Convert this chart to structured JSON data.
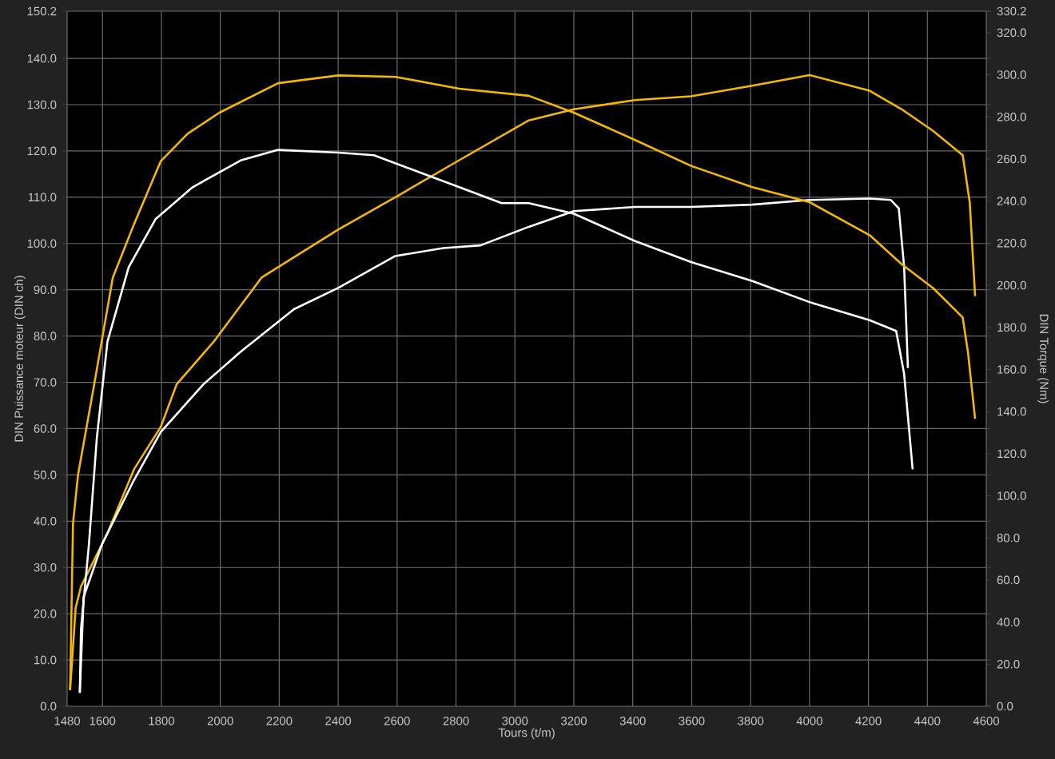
{
  "chart_data": {
    "type": "line",
    "xlabel": "Tours (t/m)",
    "ylabel": "DIN Puissance moteur (DIN ch)",
    "y2label": "DIN Torque (Nm)",
    "xlim": [
      1480,
      4600
    ],
    "xticks": [
      1480,
      1600,
      1800,
      2000,
      2200,
      2400,
      2600,
      2800,
      3000,
      3200,
      3400,
      3600,
      3800,
      4000,
      4200,
      4400,
      4600
    ],
    "ylim": [
      0,
      150.2
    ],
    "yticks": [
      {
        "value": 0,
        "label": "0.0"
      },
      {
        "value": 10,
        "label": "10.0"
      },
      {
        "value": 20,
        "label": "20.0"
      },
      {
        "value": 30,
        "label": "30.0"
      },
      {
        "value": 40,
        "label": "40.0"
      },
      {
        "value": 50,
        "label": "50.0"
      },
      {
        "value": 60,
        "label": "60.0"
      },
      {
        "value": 70,
        "label": "70.0"
      },
      {
        "value": 80,
        "label": "80.0"
      },
      {
        "value": 90,
        "label": "90.0"
      },
      {
        "value": 100,
        "label": "100.0"
      },
      {
        "value": 110,
        "label": "110.0"
      },
      {
        "value": 120,
        "label": "120.0"
      },
      {
        "value": 130,
        "label": "130.0"
      },
      {
        "value": 140,
        "label": "140.0"
      },
      150.2
    ],
    "y2lim": [
      0,
      330.2
    ],
    "y2ticks": [
      {
        "value": 0,
        "label": "0.0"
      },
      {
        "value": 20,
        "label": "20.0"
      },
      {
        "value": 40,
        "label": "40.0"
      },
      {
        "value": 60,
        "label": "60.0"
      },
      {
        "value": 80,
        "label": "80.0"
      },
      {
        "value": 100,
        "label": "100.0"
      },
      {
        "value": 120,
        "label": "120.0"
      },
      {
        "value": 140,
        "label": "140.0"
      },
      {
        "value": 160,
        "label": "160.0"
      },
      {
        "value": 180,
        "label": "180.0"
      },
      {
        "value": 200,
        "label": "200.0"
      },
      {
        "value": 220,
        "label": "220.0"
      },
      {
        "value": 240,
        "label": "240.0"
      },
      {
        "value": 260,
        "label": "260.0"
      },
      {
        "value": 280,
        "label": "280.0"
      },
      {
        "value": 300,
        "label": "300.0"
      },
      {
        "value": 320,
        "label": "320.0"
      },
      330.2
    ],
    "grid": true,
    "series": [
      {
        "color": "#f5b800",
        "x": [
          1490,
          1509,
          1527,
          1617,
          1707,
          1798,
          1852,
          1979,
          2141,
          2400,
          2594,
          2811,
          3047,
          3200,
          3408,
          3598,
          3806,
          4000,
          4204,
          4313,
          4420,
          4520,
          4544,
          4562
        ],
        "values": [
          3.5,
          21.3,
          25.9,
          37.4,
          51.2,
          60.4,
          69.6,
          78.9,
          92.7,
          103,
          110,
          118,
          126.6,
          129,
          131,
          131.8,
          134.1,
          136.4,
          133,
          129,
          124.3,
          119.1,
          108.8,
          88.6
        ]
      },
      {
        "color": "#ffffff",
        "x": [
          1523,
          1536,
          1599,
          1707,
          1798,
          1943,
          2069,
          2250,
          2400,
          2594,
          2757,
          2883,
          3047,
          3200,
          3408,
          3598,
          3806,
          4000,
          4204,
          4276,
          4303,
          4321,
          4334
        ],
        "values": [
          2.9,
          23.6,
          35.1,
          48.9,
          59.3,
          69.6,
          76.6,
          85.8,
          90.4,
          97.3,
          99,
          99.6,
          103.6,
          107,
          107.9,
          107.9,
          108.4,
          109.4,
          109.7,
          109.4,
          107.6,
          95,
          73.1
        ]
      },
      {
        "color": "#f5b800",
        "axis": "y2",
        "x": [
          1490,
          1500,
          1517,
          1572,
          1635,
          1707,
          1798,
          1889,
          1997,
          2196,
          2400,
          2594,
          2811,
          3047,
          3200,
          3408,
          3598,
          3806,
          4000,
          4204,
          4313,
          4420,
          4520,
          4538,
          4562
        ],
        "values": [
          7.6,
          87,
          110,
          153,
          203.6,
          229,
          259,
          272,
          282,
          296,
          299.7,
          299,
          293.4,
          290,
          282,
          269,
          256.7,
          246.6,
          239.5,
          223.8,
          210,
          198.6,
          184.7,
          168,
          136.6
        ]
      },
      {
        "color": "#ffffff",
        "axis": "y2",
        "x": [
          1523,
          1527,
          1554,
          1581,
          1617,
          1689,
          1780,
          1906,
          2069,
          2196,
          2400,
          2521,
          2666,
          2811,
          2955,
          3047,
          3200,
          3408,
          3598,
          3806,
          4000,
          4204,
          4294,
          4321,
          4350
        ],
        "values": [
          6.4,
          36.7,
          77,
          127.8,
          173.3,
          208.6,
          231.4,
          246.6,
          259.3,
          264.3,
          263,
          261.8,
          254.2,
          246.6,
          239,
          239,
          234,
          221,
          211,
          202,
          192,
          183.4,
          178.3,
          158,
          112.6
        ]
      }
    ]
  }
}
